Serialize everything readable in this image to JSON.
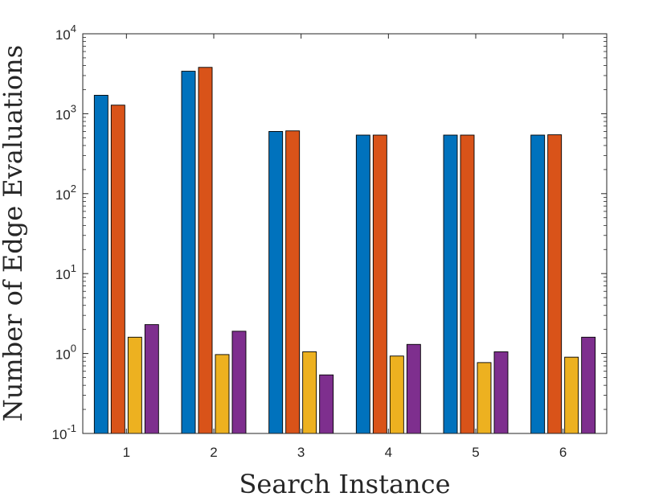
{
  "chart_data": {
    "type": "bar",
    "xlabel": "Search Instance",
    "ylabel": "Number of Edge Evaluations",
    "yscale": "log",
    "ylim": [
      0.1,
      10000
    ],
    "ytick_base": "10",
    "ytick_exponents": [
      "-1",
      "0",
      "1",
      "2",
      "3",
      "4"
    ],
    "categories": [
      "1",
      "2",
      "3",
      "4",
      "5",
      "6"
    ],
    "series": [
      {
        "color": "#0072BD",
        "values": [
          1700,
          3400,
          600,
          540,
          540,
          540
        ]
      },
      {
        "color": "#D95319",
        "values": [
          1280,
          3800,
          610,
          540,
          540,
          545
        ]
      },
      {
        "color": "#EDB120",
        "values": [
          1.6,
          0.97,
          1.05,
          0.93,
          0.77,
          0.9
        ]
      },
      {
        "color": "#7E2F8E",
        "values": [
          2.3,
          1.9,
          0.54,
          1.3,
          1.05,
          1.6
        ]
      }
    ],
    "grid": false,
    "legend": "none"
  }
}
